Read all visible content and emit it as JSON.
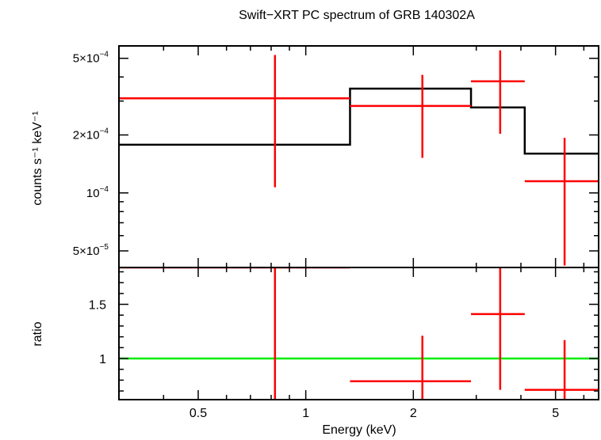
{
  "chart_data": {
    "type": "spectrum",
    "title": "Swift−XRT PC spectrum of GRB 140302A",
    "x_axis": {
      "label": "Energy (keV)",
      "scale": "log",
      "range": [
        0.3,
        6.6
      ],
      "ticks": [
        {
          "value": 0.5,
          "label": "0.5"
        },
        {
          "value": 1,
          "label": "1"
        },
        {
          "value": 2,
          "label": "2"
        },
        {
          "value": 5,
          "label": "5"
        }
      ]
    },
    "top_panel": {
      "y_label": "counts s⁻¹ keV⁻¹",
      "y_scale": "log",
      "y_range": [
        4.1e-05,
        0.00058
      ],
      "y_ticks": [
        {
          "value": 5e-05,
          "base": "5×10",
          "exp": "−5"
        },
        {
          "value": 0.0001,
          "base": "10",
          "exp": "−4"
        },
        {
          "value": 0.0002,
          "base": "2×10",
          "exp": "−4"
        },
        {
          "value": 0.0005,
          "base": "5×10",
          "exp": "−4"
        }
      ],
      "model": {
        "color": "#000000",
        "bins": [
          {
            "x0": 0.3,
            "x1": 1.33,
            "y": 0.000178
          },
          {
            "x0": 1.33,
            "x1": 2.9,
            "y": 0.000348
          },
          {
            "x0": 2.9,
            "x1": 4.1,
            "y": 0.000278
          },
          {
            "x0": 4.1,
            "x1": 6.6,
            "y": 0.00016
          }
        ]
      },
      "data": {
        "color": "#ff0000",
        "points": [
          {
            "x": 0.82,
            "xlo": 0.3,
            "xhi": 1.33,
            "y": 0.00031,
            "ylo": 0.000107,
            "yhi": 0.00052
          },
          {
            "x": 2.12,
            "xlo": 1.33,
            "xhi": 2.9,
            "y": 0.000283,
            "ylo": 0.000152,
            "yhi": 0.00041
          },
          {
            "x": 3.5,
            "xlo": 2.9,
            "xhi": 4.1,
            "y": 0.00038,
            "ylo": 0.000203,
            "yhi": 0.00055
          },
          {
            "x": 5.3,
            "xlo": 4.1,
            "xhi": 6.6,
            "y": 0.000115,
            "ylo": 4.2e-05,
            "yhi": 0.000193
          }
        ]
      }
    },
    "bottom_panel": {
      "y_label": "ratio",
      "y_scale": "linear",
      "y_range": [
        0.62,
        1.84
      ],
      "y_ticks": [
        {
          "value": 1,
          "label": "1"
        },
        {
          "value": 1.5,
          "label": "1.5"
        }
      ],
      "reference_line": {
        "y": 1,
        "color": "#00ee00"
      },
      "data": {
        "color": "#ff0000",
        "points": [
          {
            "x": 0.82,
            "xlo": 0.3,
            "xhi": 1.33,
            "y": 1.84,
            "ylo": 0.62,
            "yhi": 1.84
          },
          {
            "x": 2.12,
            "xlo": 1.33,
            "xhi": 2.9,
            "y": 0.79,
            "ylo": 0.62,
            "yhi": 1.21
          },
          {
            "x": 3.5,
            "xlo": 2.9,
            "xhi": 4.1,
            "y": 1.41,
            "ylo": 0.71,
            "yhi": 1.84
          },
          {
            "x": 5.3,
            "xlo": 4.1,
            "xhi": 6.6,
            "y": 0.71,
            "ylo": 0.62,
            "yhi": 1.17
          }
        ]
      }
    }
  }
}
